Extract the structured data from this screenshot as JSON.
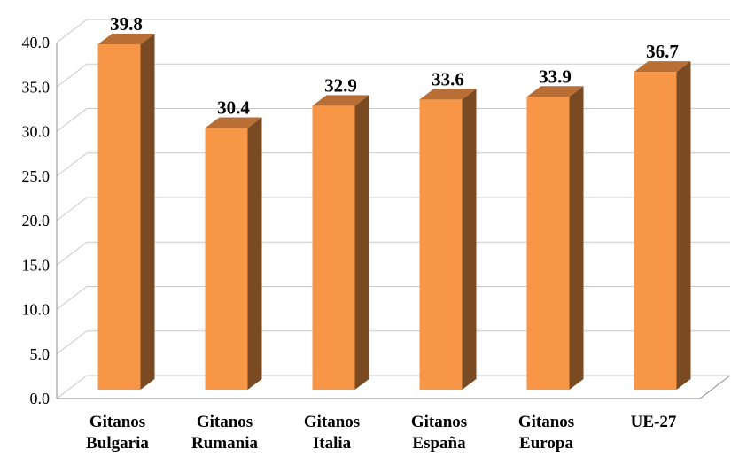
{
  "chart_data": {
    "type": "bar",
    "categories": [
      [
        "Gitanos",
        "Bulgaria"
      ],
      [
        "Gitanos",
        "Rumania"
      ],
      [
        "Gitanos",
        "Italia"
      ],
      [
        "Gitanos",
        "España"
      ],
      [
        "Gitanos",
        "Europa"
      ],
      [
        "UE-27"
      ]
    ],
    "values": [
      39.8,
      30.4,
      32.9,
      33.6,
      33.9,
      36.7
    ],
    "data_labels": [
      "39.8",
      "30.4",
      "32.9",
      "33.6",
      "33.9",
      "36.7"
    ],
    "y_ticks": [
      "0.0",
      "5.0",
      "10.0",
      "15.0",
      "20.0",
      "25.0",
      "30.0",
      "35.0",
      "40.0"
    ],
    "ylim": [
      0,
      40
    ],
    "grid": true,
    "style": "3d-column",
    "colors": {
      "bar_front": "#F79646",
      "bar_side": "#7A4A23",
      "bar_top": "#B86E35",
      "grid": "#C9C9C9",
      "axis": "#8C8C8C"
    }
  }
}
